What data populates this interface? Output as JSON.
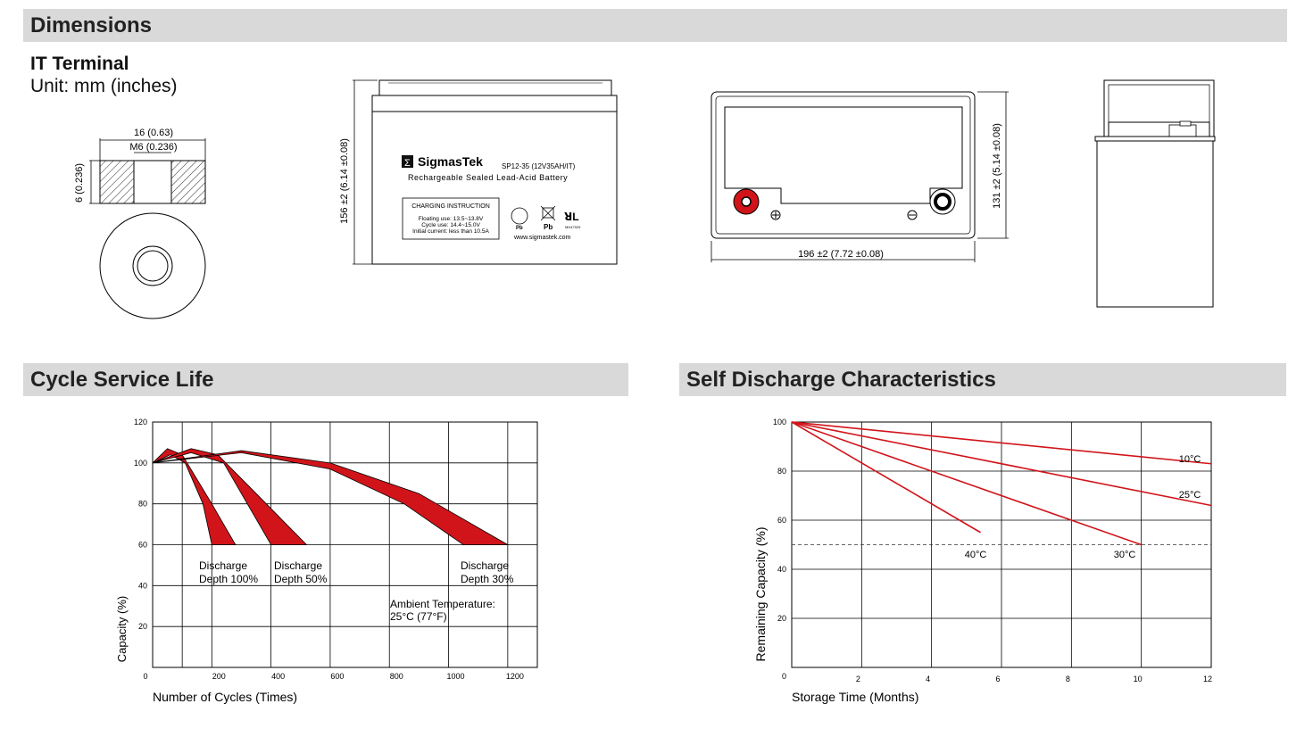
{
  "sections": {
    "dimensions": "Dimensions",
    "cycle": "Cycle Service Life",
    "self_discharge": "Self Discharge Characteristics"
  },
  "terminal": {
    "title": "IT Terminal",
    "unit": "Unit: mm (inches)",
    "width_dim": "16 (0.63)",
    "thread_dim": "M6 (0.236)",
    "height_dim": "6 (0.236)"
  },
  "battery": {
    "brand": "SigmasTek",
    "model": "SP12-35 (12V35AH/IT)",
    "description": "Rechargeable Sealed Lead-Acid Battery",
    "charging_title": "CHARGING INSTRUCTION",
    "charging_lines": [
      "Floating use: 13.5~13.8V",
      "Cycle use: 14.4~15.0V",
      "Initial current: less than 10.5A"
    ],
    "pb1": "Pb",
    "pb2": "Pb",
    "cert": "MH47929",
    "website": "www.sigmastek.com",
    "height_dim": "156 ±2 (6.14 ±0.08)",
    "length_dim": "196 ±2 (7.72 ±0.08)",
    "width_dim": "131 ±2 (5.14 ±0.08)"
  },
  "chart_data": [
    {
      "type": "area",
      "title": "Cycle Service Life",
      "xlabel": "Number of Cycles (Times)",
      "ylabel": "Capacity (%)",
      "xlim": [
        0,
        1300
      ],
      "ylim": [
        0,
        120
      ],
      "xticks": [
        "0",
        "200",
        "400",
        "600",
        "800",
        "1000",
        "1200"
      ],
      "yticks": [
        "20",
        "40",
        "60",
        "80",
        "100",
        "120"
      ],
      "series": [
        {
          "name": "Discharge Depth 100%",
          "upper": [
            [
              0,
              100
            ],
            [
              50,
              107
            ],
            [
              100,
              104
            ],
            [
              200,
              80
            ],
            [
              280,
              60
            ]
          ],
          "lower": [
            [
              0,
              100
            ],
            [
              60,
              104
            ],
            [
              110,
              100
            ],
            [
              170,
              80
            ],
            [
              200,
              60
            ]
          ]
        },
        {
          "name": "Discharge Depth 50%",
          "upper": [
            [
              0,
              100
            ],
            [
              130,
              107
            ],
            [
              220,
              104
            ],
            [
              350,
              85
            ],
            [
              520,
              60
            ]
          ],
          "lower": [
            [
              0,
              100
            ],
            [
              130,
              105
            ],
            [
              240,
              100
            ],
            [
              320,
              80
            ],
            [
              400,
              60
            ]
          ]
        },
        {
          "name": "Discharge Depth 30%",
          "upper": [
            [
              0,
              100
            ],
            [
              300,
              106
            ],
            [
              600,
              100
            ],
            [
              900,
              85
            ],
            [
              1200,
              60
            ]
          ],
          "lower": [
            [
              0,
              100
            ],
            [
              300,
              105
            ],
            [
              600,
              97
            ],
            [
              850,
              80
            ],
            [
              1050,
              60
            ]
          ]
        }
      ],
      "annotations": [
        "Discharge Depth 100%",
        "Discharge Depth 50%",
        "Discharge Depth 30%",
        "Ambient Temperature: 25°C (77°F)"
      ]
    },
    {
      "type": "line",
      "title": "Self Discharge Characteristics",
      "xlabel": "Storage Time (Months)",
      "ylabel": "Remaining Capacity (%)",
      "xlim": [
        0,
        12
      ],
      "ylim": [
        0,
        100
      ],
      "xticks": [
        "2",
        "4",
        "6",
        "8",
        "10",
        "12"
      ],
      "yticks": [
        "0",
        "20",
        "40",
        "60",
        "80",
        "100"
      ],
      "reference_line": 50,
      "series": [
        {
          "name": "10°C",
          "x": [
            0,
            12
          ],
          "y": [
            100,
            83
          ]
        },
        {
          "name": "25°C",
          "x": [
            0,
            12
          ],
          "y": [
            100,
            66
          ]
        },
        {
          "name": "30°C",
          "x": [
            0,
            10
          ],
          "y": [
            100,
            50
          ]
        },
        {
          "name": "40°C",
          "x": [
            0,
            5.4
          ],
          "y": [
            100,
            55
          ]
        }
      ],
      "colors": {
        "line": "#d0141a"
      }
    }
  ]
}
